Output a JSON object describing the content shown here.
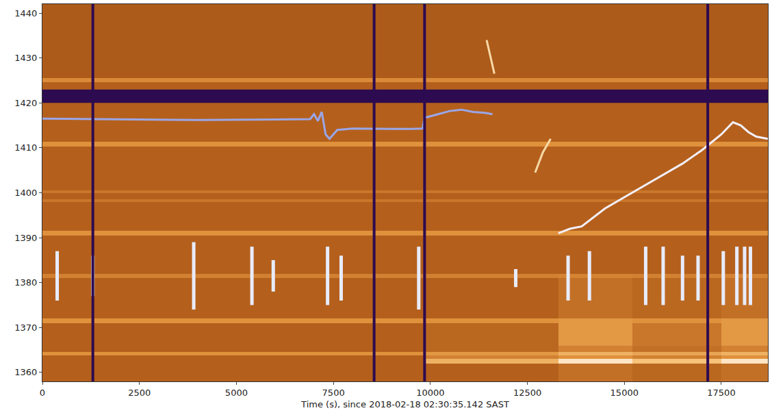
{
  "chart_data": {
    "type": "heatmap",
    "xlabel": "Time (s), since 2018-02-18 02:30:35.142 SAST",
    "xlim": [
      0,
      18700
    ],
    "xticks": [
      0,
      2500,
      5000,
      7500,
      10000,
      12500,
      15000,
      17500
    ],
    "ylim": [
      1358,
      1442
    ],
    "yticks": [
      1360,
      1370,
      1380,
      1390,
      1400,
      1410,
      1420,
      1430,
      1440
    ],
    "grid": false,
    "cells": {
      "x_edges": [
        0,
        9850,
        13300,
        15200,
        17500,
        18700
      ],
      "y_edges": [
        1357.5,
        1362,
        1363,
        1363.8,
        1364.6,
        1366,
        1371,
        1372,
        1381,
        1382,
        1390.5,
        1391.5,
        1398,
        1398.6,
        1400,
        1400.6,
        1410.3,
        1411.3,
        1424.6,
        1425.6,
        1442
      ],
      "z": [
        [
          0.45,
          0.45,
          0.5,
          0.47,
          0.5
        ],
        [
          0.45,
          0.7,
          0.85,
          0.75,
          0.85
        ],
        [
          0.45,
          0.55,
          0.6,
          0.55,
          0.6
        ],
        [
          0.6,
          0.62,
          0.7,
          0.66,
          0.7
        ],
        [
          0.45,
          0.47,
          0.55,
          0.5,
          0.55
        ],
        [
          0.45,
          0.47,
          0.62,
          0.52,
          0.62
        ],
        [
          0.6,
          0.6,
          0.62,
          0.6,
          0.62
        ],
        [
          0.45,
          0.45,
          0.5,
          0.47,
          0.5
        ],
        [
          0.55,
          0.55,
          0.56,
          0.55,
          0.56
        ],
        [
          0.45,
          0.45,
          0.45,
          0.45,
          0.45
        ],
        [
          0.6,
          0.6,
          0.6,
          0.6,
          0.6
        ],
        [
          0.45,
          0.45,
          0.45,
          0.45,
          0.45
        ],
        [
          0.52,
          0.52,
          0.52,
          0.52,
          0.52
        ],
        [
          0.45,
          0.45,
          0.45,
          0.45,
          0.45
        ],
        [
          0.52,
          0.52,
          0.52,
          0.52,
          0.52
        ],
        [
          0.45,
          0.45,
          0.45,
          0.45,
          0.45
        ],
        [
          0.6,
          0.6,
          0.6,
          0.6,
          0.6
        ],
        [
          0.45,
          0.45,
          0.45,
          0.45,
          0.45
        ],
        [
          0.58,
          0.58,
          0.58,
          0.58,
          0.58
        ],
        [
          0.43,
          0.43,
          0.43,
          0.43,
          0.43
        ]
      ],
      "zlim": [
        0,
        1
      ]
    },
    "series": [
      {
        "type": "line",
        "color": "#9aa6e8",
        "x": [
          0,
          2000,
          4000,
          6000,
          6900,
          7000,
          7100,
          7200,
          7300,
          7400,
          7600,
          8000,
          8500,
          9000,
          9500,
          9800,
          9850,
          9900,
          10200,
          10500,
          10800,
          11100,
          11400,
          11600
        ],
        "y": [
          1416.5,
          1416.4,
          1416.2,
          1416.3,
          1416.4,
          1417.5,
          1416,
          1418,
          1413,
          1412,
          1414,
          1414.3,
          1414.2,
          1414.2,
          1414.2,
          1414.3,
          1417,
          1416.8,
          1417.5,
          1418.2,
          1418.5,
          1418,
          1417.8,
          1417.5
        ]
      },
      {
        "type": "line",
        "color": "#f2f0ff",
        "x": [
          13300,
          13600,
          13900,
          14200,
          14500,
          15000,
          15500,
          16000,
          16500,
          17000,
          17500,
          17800,
          18000,
          18200,
          18400,
          18700
        ],
        "y": [
          1391,
          1392,
          1392.5,
          1394.5,
          1396.5,
          1399,
          1401.5,
          1404,
          1406.5,
          1409.5,
          1413,
          1415.7,
          1415,
          1413.5,
          1412.5,
          1412
        ]
      },
      {
        "type": "line",
        "color": "#f7d9a8",
        "x": [
          11450,
          11650
        ],
        "y": [
          1434,
          1426.5
        ]
      },
      {
        "type": "line",
        "color": "#f7d9a8",
        "x": [
          12700,
          12900,
          13100
        ],
        "y": [
          1404.5,
          1409,
          1412
        ]
      }
    ],
    "bursts": {
      "color": "#e8ecff",
      "x": [
        380,
        1300,
        3900,
        5400,
        5950,
        7350,
        7700,
        9700,
        12200,
        13550,
        14100,
        15550,
        16000,
        16500,
        16900,
        17550,
        17900,
        18100,
        18250
      ],
      "low": [
        1376,
        1377,
        1374,
        1375,
        1378,
        1375,
        1376,
        1374,
        1379,
        1376,
        1376,
        1375,
        1375,
        1376,
        1376,
        1375,
        1375,
        1375,
        1375
      ],
      "high": [
        1387,
        1386,
        1389,
        1388,
        1385,
        1388,
        1386,
        1388,
        1383,
        1386,
        1387,
        1388,
        1388,
        1386,
        1386,
        1387,
        1388,
        1388,
        1388
      ]
    },
    "flags": {
      "color": "#2d0b50",
      "times": [
        1300,
        8550,
        9850,
        17150
      ],
      "band": [
        1420,
        1423
      ]
    }
  }
}
